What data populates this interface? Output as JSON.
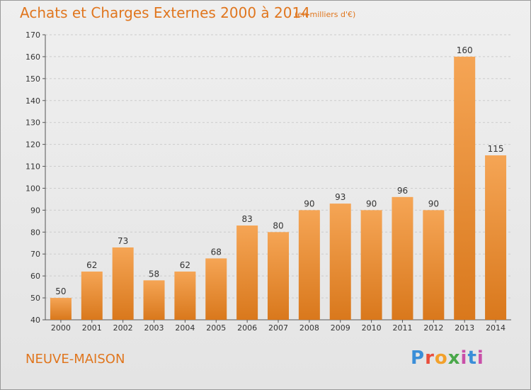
{
  "header": {
    "title": "Achats et Charges Externes 2000 à 2014",
    "unit": "(en milliers d'€)"
  },
  "footer": {
    "commune": "NEUVE-MAISON",
    "logo": "Proxiti"
  },
  "colors": {
    "bar_top": "#f5a555",
    "bar_bottom": "#d9781c",
    "text_accent": "#e0761e",
    "grid": "#cccccc"
  },
  "chart_data": {
    "type": "bar",
    "title": "Achats et Charges Externes 2000 à 2014",
    "subtitle": "(en milliers d'€)",
    "categories": [
      "2000",
      "2001",
      "2002",
      "2003",
      "2004",
      "2005",
      "2006",
      "2007",
      "2008",
      "2009",
      "2010",
      "2011",
      "2012",
      "2013",
      "2014"
    ],
    "values": [
      50,
      62,
      73,
      58,
      62,
      68,
      83,
      80,
      90,
      93,
      90,
      96,
      90,
      160,
      115
    ],
    "data_labels": [
      "50",
      "62",
      "73",
      "58",
      "62",
      "68",
      "83",
      "80",
      "90",
      "93",
      "90",
      "96",
      "90",
      "160",
      "115"
    ],
    "ylim": [
      40,
      170
    ],
    "yticks": [
      "40",
      "50",
      "60",
      "70",
      "80",
      "90",
      "100",
      "110",
      "120",
      "130",
      "140",
      "150",
      "160",
      "170"
    ],
    "grid": true,
    "legend": "none"
  }
}
